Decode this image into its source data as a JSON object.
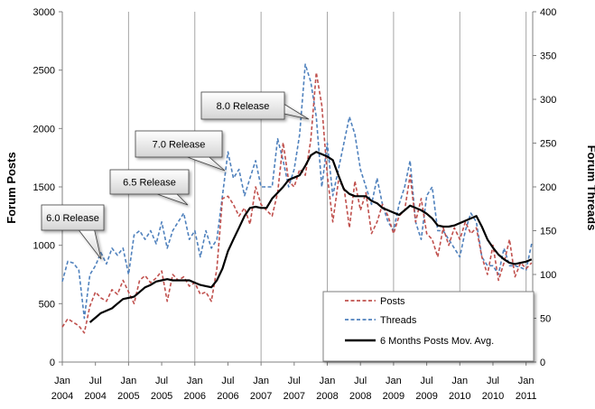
{
  "chart_data": {
    "type": "line",
    "ylabel": "Forum Posts",
    "y2label": "Forum Threads",
    "ylim": [
      0,
      3000
    ],
    "y2lim": [
      0,
      400
    ],
    "yticks": [
      0,
      500,
      1000,
      1500,
      2000,
      2500,
      3000
    ],
    "y2ticks": [
      0,
      50,
      100,
      150,
      200,
      250,
      300,
      350,
      400
    ],
    "xlim": [
      2004.0,
      2011.1
    ],
    "xticks": [
      {
        "x": 2004.0,
        "line1": "Jan",
        "line2": "2004"
      },
      {
        "x": 2004.5,
        "line1": "Jul",
        "line2": "2004"
      },
      {
        "x": 2005.0,
        "line1": "Jan",
        "line2": "2005"
      },
      {
        "x": 2005.5,
        "line1": "Jul",
        "line2": "2005"
      },
      {
        "x": 2006.0,
        "line1": "Jan",
        "line2": "2006"
      },
      {
        "x": 2006.5,
        "line1": "Jul",
        "line2": "2006"
      },
      {
        "x": 2007.0,
        "line1": "Jan",
        "line2": "2007"
      },
      {
        "x": 2007.5,
        "line1": "Jul",
        "line2": "2007"
      },
      {
        "x": 2008.0,
        "line1": "Jan",
        "line2": "2008"
      },
      {
        "x": 2008.5,
        "line1": "Jul",
        "line2": "2008"
      },
      {
        "x": 2009.0,
        "line1": "Jan",
        "line2": "2009"
      },
      {
        "x": 2009.5,
        "line1": "Jul",
        "line2": "2009"
      },
      {
        "x": 2010.0,
        "line1": "Jan",
        "line2": "2010"
      },
      {
        "x": 2010.5,
        "line1": "Jul",
        "line2": "2010"
      },
      {
        "x": 2011.0,
        "line1": "Jan",
        "line2": "2011"
      }
    ],
    "vertical_gridlines_at": [
      2005.0,
      2006.0,
      2007.0,
      2008.0,
      2009.0,
      2010.0,
      2011.0
    ],
    "grid": false,
    "legend_position": "bottom-right",
    "series": [
      {
        "name": "Posts",
        "axis": "left",
        "color": "#C0504D",
        "dash": "dashed",
        "x": [
          2004.0,
          2004.083,
          2004.167,
          2004.25,
          2004.333,
          2004.417,
          2004.5,
          2004.583,
          2004.667,
          2004.75,
          2004.833,
          2004.917,
          2005.0,
          2005.083,
          2005.167,
          2005.25,
          2005.333,
          2005.417,
          2005.5,
          2005.583,
          2005.667,
          2005.75,
          2005.833,
          2005.917,
          2006.0,
          2006.083,
          2006.167,
          2006.25,
          2006.333,
          2006.417,
          2006.5,
          2006.583,
          2006.667,
          2006.75,
          2006.833,
          2006.917,
          2007.0,
          2007.083,
          2007.167,
          2007.25,
          2007.333,
          2007.417,
          2007.5,
          2007.583,
          2007.667,
          2007.75,
          2007.833,
          2007.917,
          2008.0,
          2008.083,
          2008.167,
          2008.25,
          2008.333,
          2008.417,
          2008.5,
          2008.583,
          2008.667,
          2008.75,
          2008.833,
          2008.917,
          2009.0,
          2009.083,
          2009.167,
          2009.25,
          2009.333,
          2009.417,
          2009.5,
          2009.583,
          2009.667,
          2009.75,
          2009.833,
          2009.917,
          2010.0,
          2010.083,
          2010.167,
          2010.25,
          2010.333,
          2010.417,
          2010.5,
          2010.583,
          2010.667,
          2010.75,
          2010.833,
          2010.917,
          2011.0,
          2011.083
        ],
        "values": [
          300,
          370,
          340,
          310,
          250,
          480,
          600,
          550,
          520,
          620,
          580,
          700,
          600,
          500,
          700,
          740,
          680,
          720,
          780,
          520,
          750,
          700,
          730,
          650,
          680,
          580,
          600,
          520,
          800,
          1400,
          1420,
          1350,
          1250,
          1320,
          1180,
          1500,
          1350,
          1300,
          1250,
          1450,
          1880,
          1550,
          1500,
          1650,
          1600,
          1900,
          2480,
          2200,
          1600,
          1200,
          1550,
          1500,
          1150,
          1550,
          1300,
          1450,
          1100,
          1200,
          1350,
          1250,
          1100,
          1250,
          1300,
          1600,
          1200,
          1400,
          1100,
          1050,
          900,
          1150,
          1000,
          1150,
          1050,
          1200,
          1100,
          1150,
          900,
          750,
          1000,
          700,
          850,
          1050,
          730,
          850,
          800,
          850
        ]
      },
      {
        "name": "Threads",
        "axis": "right",
        "color": "#4F81BD",
        "dash": "dashed",
        "x": [
          2004.0,
          2004.083,
          2004.167,
          2004.25,
          2004.333,
          2004.417,
          2004.5,
          2004.583,
          2004.667,
          2004.75,
          2004.833,
          2004.917,
          2005.0,
          2005.083,
          2005.167,
          2005.25,
          2005.333,
          2005.417,
          2005.5,
          2005.583,
          2005.667,
          2005.75,
          2005.833,
          2005.917,
          2006.0,
          2006.083,
          2006.167,
          2006.25,
          2006.333,
          2006.417,
          2006.5,
          2006.583,
          2006.667,
          2006.75,
          2006.833,
          2006.917,
          2007.0,
          2007.083,
          2007.167,
          2007.25,
          2007.333,
          2007.417,
          2007.5,
          2007.583,
          2007.667,
          2007.75,
          2007.833,
          2007.917,
          2008.0,
          2008.083,
          2008.167,
          2008.25,
          2008.333,
          2008.417,
          2008.5,
          2008.583,
          2008.667,
          2008.75,
          2008.833,
          2008.917,
          2009.0,
          2009.083,
          2009.167,
          2009.25,
          2009.333,
          2009.417,
          2009.5,
          2009.583,
          2009.667,
          2009.75,
          2009.833,
          2009.917,
          2010.0,
          2010.083,
          2010.167,
          2010.25,
          2010.333,
          2010.417,
          2010.5,
          2010.583,
          2010.667,
          2010.75,
          2010.833,
          2010.917,
          2011.0,
          2011.083
        ],
        "values": [
          92,
          115,
          113,
          105,
          50,
          100,
          110,
          125,
          112,
          130,
          122,
          130,
          100,
          145,
          150,
          140,
          150,
          135,
          160,
          130,
          150,
          160,
          170,
          140,
          150,
          120,
          150,
          130,
          140,
          190,
          240,
          210,
          220,
          190,
          210,
          230,
          200,
          200,
          200,
          255,
          230,
          200,
          220,
          260,
          340,
          320,
          280,
          200,
          250,
          190,
          220,
          250,
          280,
          260,
          220,
          200,
          180,
          210,
          180,
          160,
          150,
          180,
          200,
          230,
          160,
          140,
          190,
          200,
          150,
          150,
          140,
          130,
          120,
          150,
          170,
          160,
          120,
          110,
          110,
          100,
          130,
          110,
          110,
          108,
          105,
          135
        ]
      },
      {
        "name": "6 Months Posts Mov. Avg.",
        "axis": "left",
        "color": "#000000",
        "dash": "solid",
        "x": [
          2004.417,
          2004.5,
          2004.583,
          2004.667,
          2004.75,
          2004.833,
          2004.917,
          2005.0,
          2005.083,
          2005.167,
          2005.25,
          2005.333,
          2005.417,
          2005.5,
          2005.583,
          2005.667,
          2005.75,
          2005.833,
          2005.917,
          2006.0,
          2006.083,
          2006.167,
          2006.25,
          2006.333,
          2006.417,
          2006.5,
          2006.583,
          2006.667,
          2006.75,
          2006.833,
          2006.917,
          2007.0,
          2007.083,
          2007.167,
          2007.25,
          2007.333,
          2007.417,
          2007.5,
          2007.583,
          2007.667,
          2007.75,
          2007.833,
          2007.917,
          2008.0,
          2008.083,
          2008.167,
          2008.25,
          2008.333,
          2008.417,
          2008.5,
          2008.583,
          2008.667,
          2008.75,
          2008.833,
          2008.917,
          2009.0,
          2009.083,
          2009.167,
          2009.25,
          2009.333,
          2009.417,
          2009.5,
          2009.583,
          2009.667,
          2009.75,
          2009.833,
          2009.917,
          2010.0,
          2010.083,
          2010.167,
          2010.25,
          2010.333,
          2010.417,
          2010.5,
          2010.583,
          2010.667,
          2010.75,
          2010.833,
          2010.917,
          2011.0,
          2011.083
        ],
        "values": [
          340,
          380,
          420,
          440,
          460,
          500,
          540,
          550,
          560,
          600,
          640,
          660,
          690,
          700,
          710,
          700,
          700,
          700,
          700,
          680,
          660,
          650,
          640,
          700,
          800,
          950,
          1050,
          1150,
          1250,
          1320,
          1330,
          1320,
          1320,
          1400,
          1450,
          1500,
          1560,
          1580,
          1600,
          1680,
          1770,
          1800,
          1780,
          1760,
          1730,
          1600,
          1480,
          1440,
          1420,
          1420,
          1420,
          1380,
          1360,
          1320,
          1300,
          1280,
          1260,
          1300,
          1340,
          1320,
          1300,
          1270,
          1230,
          1170,
          1160,
          1160,
          1170,
          1190,
          1210,
          1230,
          1250,
          1160,
          1050,
          980,
          920,
          880,
          850,
          840,
          850,
          860,
          880
        ]
      }
    ],
    "annotations": [
      {
        "text": "6.0 Release",
        "x": 2004.5
      },
      {
        "text": "6.5 Release",
        "x": 2005.9
      },
      {
        "text": "7.0 Release",
        "x": 2006.5
      },
      {
        "text": "8.0 Release",
        "x": 2007.6
      }
    ],
    "colors": {
      "posts": "#C0504D",
      "threads": "#4F81BD",
      "moving_avg": "#000000",
      "callout_fill_top": "#FFFFFF",
      "callout_fill_bottom": "#D8D8D8",
      "gridline": "#A6A6A6"
    }
  }
}
